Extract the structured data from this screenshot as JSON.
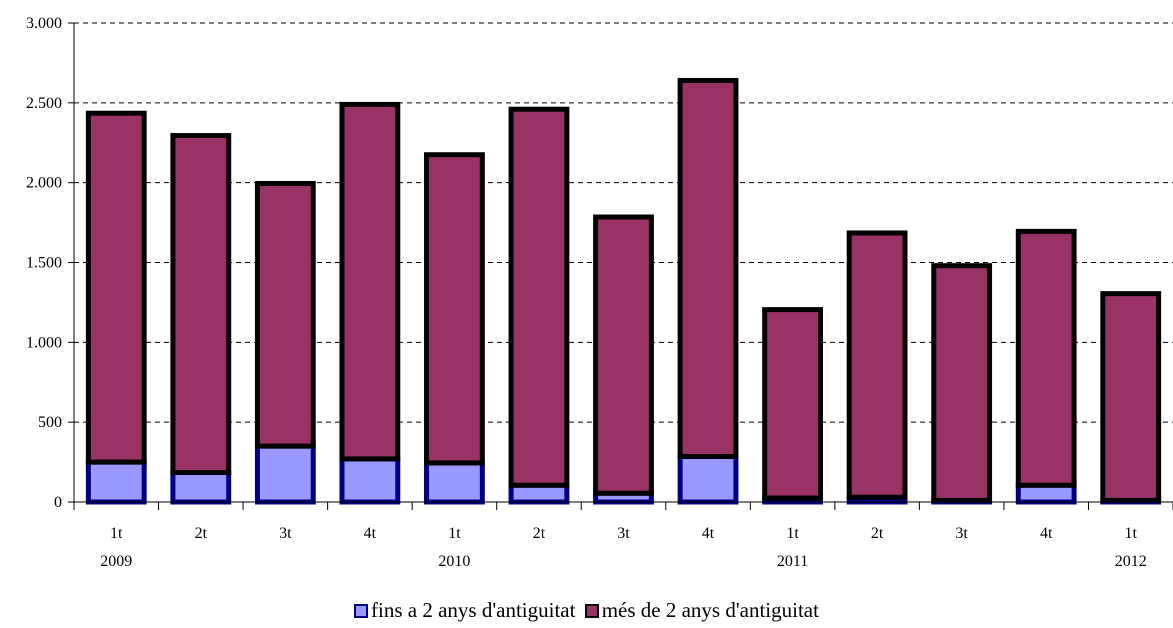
{
  "chart_data": {
    "type": "bar",
    "stacked": true,
    "categories": [
      "1t",
      "2t",
      "3t",
      "4t",
      "1t",
      "2t",
      "3t",
      "4t",
      "1t",
      "2t",
      "3t",
      "4t",
      "1t"
    ],
    "year_labels": [
      "2009",
      "",
      "",
      "",
      "2010",
      "",
      "",
      "",
      "2011",
      "",
      "",
      "",
      "2012"
    ],
    "series": [
      {
        "name": "fins a 2 anys d'antiguitat",
        "color": "#9999ff",
        "border": "#000080",
        "values": [
          250,
          185,
          350,
          270,
          245,
          105,
          55,
          285,
          25,
          30,
          10,
          105,
          10
        ]
      },
      {
        "name": "més de 2 anys d'antiguitat",
        "color": "#993366",
        "border": "#000000",
        "values": [
          2185,
          2110,
          1645,
          2220,
          1930,
          2355,
          1730,
          2355,
          1180,
          1655,
          1470,
          1590,
          1295
        ]
      }
    ],
    "ylim": [
      0,
      3000
    ],
    "yticks": [
      0,
      500,
      1000,
      1500,
      2000,
      2500,
      3000
    ],
    "ytick_labels": [
      "0",
      "500",
      "1.000",
      "1.500",
      "2.000",
      "2.500",
      "3.000"
    ],
    "grid": true,
    "legend_position": "bottom"
  }
}
